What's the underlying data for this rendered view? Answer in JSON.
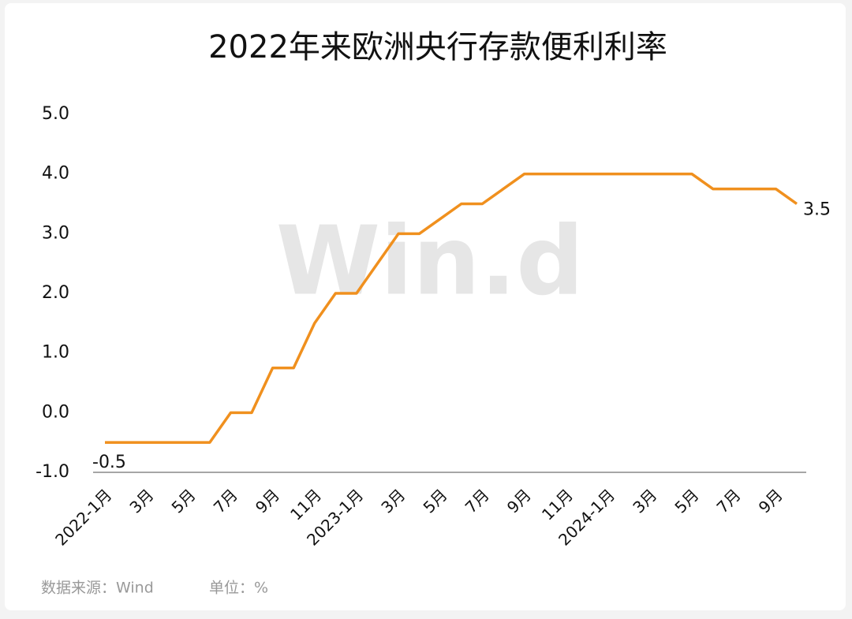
{
  "chart_data": {
    "type": "line",
    "title": "2022年来欧洲央行存款便利利率",
    "categories": [
      "2022-1月",
      null,
      "3月",
      null,
      "5月",
      null,
      "7月",
      null,
      "9月",
      null,
      "11月",
      null,
      "2023-1月",
      null,
      "3月",
      null,
      "5月",
      null,
      "7月",
      null,
      "9月",
      null,
      "11月",
      null,
      "2024-1月",
      null,
      "3月",
      null,
      "5月",
      null,
      "7月",
      null,
      "9月",
      null
    ],
    "series": [
      {
        "name": "存款便利利率",
        "color": "#f0901e",
        "values": [
          -0.5,
          -0.5,
          -0.5,
          -0.5,
          -0.5,
          -0.5,
          0,
          0,
          0.75,
          0.75,
          1.5,
          2,
          2,
          2.5,
          3,
          3,
          3.25,
          3.5,
          3.5,
          3.75,
          4,
          4,
          4,
          4,
          4,
          4,
          4,
          4,
          4,
          3.75,
          3.75,
          3.75,
          3.75,
          3.5
        ]
      }
    ],
    "ylim": [
      -1,
      5
    ],
    "yticks": [
      {
        "value": -1,
        "label": "-1.0"
      },
      {
        "value": 0,
        "label": "0.0"
      },
      {
        "value": 1,
        "label": "1.0"
      },
      {
        "value": 2,
        "label": "2.0"
      },
      {
        "value": 3,
        "label": "3.0"
      },
      {
        "value": 4,
        "label": "4.0"
      },
      {
        "value": 5,
        "label": "5.0"
      }
    ],
    "grid": false,
    "watermark": "Win.d",
    "source": "数据来源：Wind",
    "unit": "单位：%"
  }
}
